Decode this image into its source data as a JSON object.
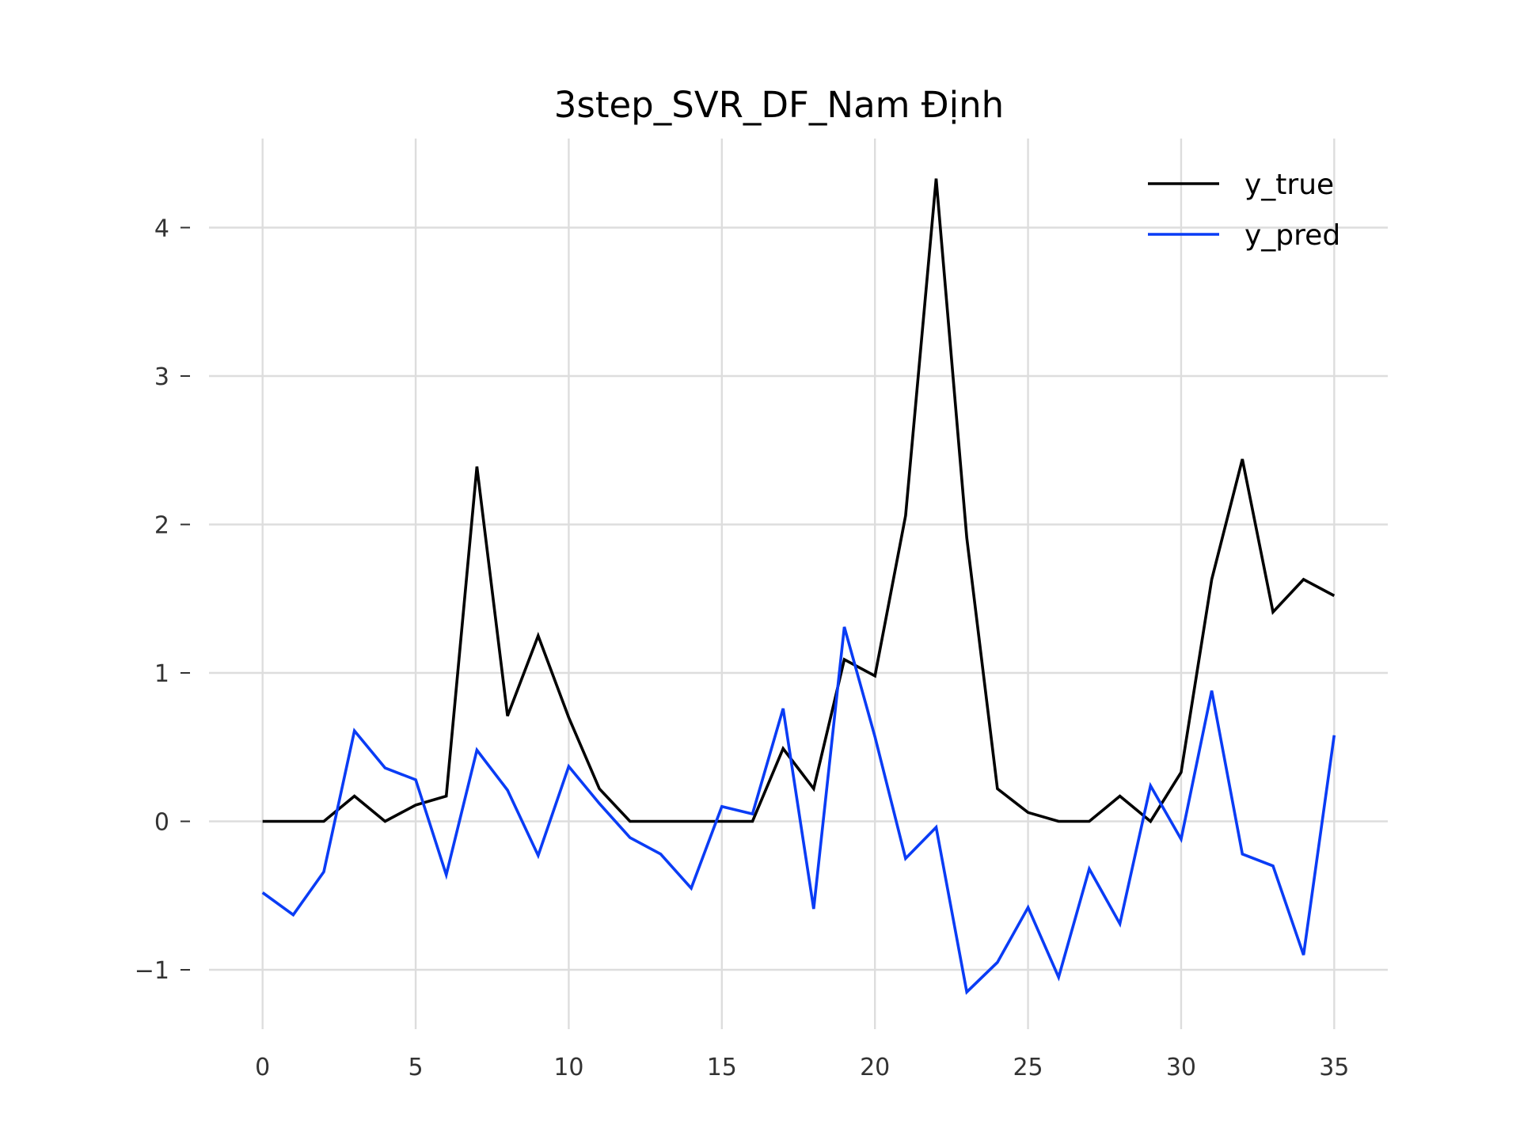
{
  "chart_data": {
    "type": "line",
    "title": "3step_SVR_DF_Nam Định",
    "xlabel": "",
    "ylabel": "",
    "xlim": [
      -1.75,
      36.75
    ],
    "ylim": [
      -1.4,
      4.6
    ],
    "xticks": [
      0,
      5,
      10,
      15,
      20,
      25,
      30,
      35
    ],
    "yticks": [
      -1,
      0,
      1,
      2,
      3,
      4
    ],
    "xtick_labels": [
      "0",
      "5",
      "10",
      "15",
      "20",
      "25",
      "30",
      "35"
    ],
    "ytick_labels": [
      "−1",
      "0",
      "1",
      "2",
      "3",
      "4"
    ],
    "grid": true,
    "legend_position": "top-right",
    "x": [
      0,
      1,
      2,
      3,
      4,
      5,
      6,
      7,
      8,
      9,
      10,
      11,
      12,
      13,
      14,
      15,
      16,
      17,
      18,
      19,
      20,
      21,
      22,
      23,
      24,
      25,
      26,
      27,
      28,
      29,
      30,
      31,
      32,
      33,
      34,
      35
    ],
    "series": [
      {
        "name": "y_true",
        "color": "#000000",
        "values": [
          0,
          0,
          0,
          0.17,
          0,
          0.11,
          0.17,
          2.39,
          0.71,
          1.25,
          0.7,
          0.22,
          0,
          0,
          0,
          0,
          0,
          0.49,
          0.22,
          1.09,
          0.98,
          2.06,
          4.33,
          1.91,
          0.22,
          0.06,
          0,
          0,
          0.17,
          0,
          0.33,
          1.63,
          2.44,
          1.41,
          1.63,
          1.52
        ]
      },
      {
        "name": "y_pred",
        "color": "#0a3cf5",
        "values": [
          -0.48,
          -0.63,
          -0.34,
          0.61,
          0.36,
          0.28,
          -0.36,
          0.48,
          0.21,
          -0.23,
          0.37,
          0.12,
          -0.11,
          -0.22,
          -0.45,
          0.1,
          0.05,
          0.76,
          -0.59,
          1.31,
          0.57,
          -0.25,
          -0.04,
          -1.15,
          -0.95,
          -0.58,
          -1.05,
          -0.32,
          -0.69,
          0.24,
          -0.12,
          0.88,
          -0.22,
          -0.3,
          -0.9,
          0.58
        ]
      }
    ]
  }
}
